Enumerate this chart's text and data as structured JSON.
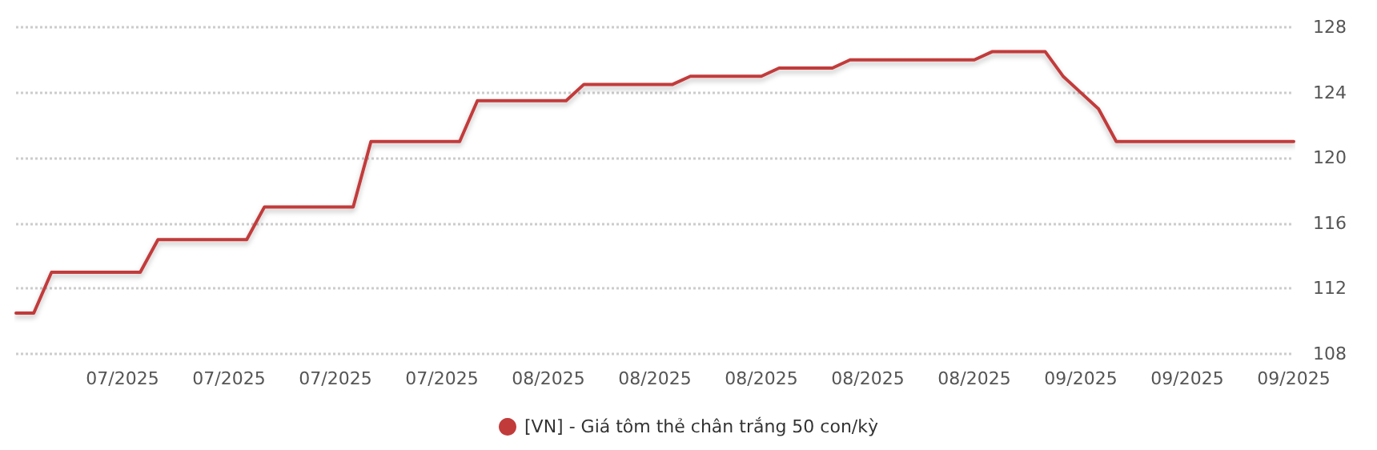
{
  "chart_data": {
    "type": "line",
    "categories": [
      null,
      null,
      null,
      null,
      null,
      null,
      "07/2025",
      null,
      null,
      null,
      null,
      null,
      "07/2025",
      null,
      null,
      null,
      null,
      null,
      "07/2025",
      null,
      null,
      null,
      null,
      null,
      "07/2025",
      null,
      null,
      null,
      null,
      null,
      "08/2025",
      null,
      null,
      null,
      null,
      null,
      "08/2025",
      null,
      null,
      null,
      null,
      null,
      "08/2025",
      null,
      null,
      null,
      null,
      null,
      "08/2025",
      null,
      null,
      null,
      null,
      null,
      "08/2025",
      null,
      null,
      null,
      null,
      null,
      "09/2025",
      null,
      null,
      null,
      null,
      null,
      "09/2025",
      null,
      null,
      null,
      null,
      null,
      "09/2025"
    ],
    "series": [
      {
        "name": "[VN] - Giá tôm thẻ chân trắng 50 con/kỳ",
        "color": "#c23b3b",
        "values": [
          110.5,
          110.5,
          113,
          113,
          113,
          113,
          113,
          113,
          115,
          115,
          115,
          115,
          115,
          115,
          117,
          117,
          117,
          117,
          117,
          117,
          121,
          121,
          121,
          121,
          121,
          121,
          123.5,
          123.5,
          123.5,
          123.5,
          123.5,
          123.5,
          124.5,
          124.5,
          124.5,
          124.5,
          124.5,
          124.5,
          125,
          125,
          125,
          125,
          125,
          125.5,
          125.5,
          125.5,
          125.5,
          126,
          126,
          126,
          126,
          126,
          126,
          126,
          126,
          126.5,
          126.5,
          126.5,
          126.5,
          125,
          124,
          123,
          121,
          121,
          121,
          121,
          121,
          121,
          121,
          121,
          121,
          121,
          121
        ]
      }
    ],
    "ylim": [
      108,
      128
    ],
    "yticks": [
      108,
      112,
      116,
      120,
      124,
      128
    ],
    "grid": "y",
    "legend": "bottom",
    "marker": "none",
    "line_style": "solid"
  }
}
